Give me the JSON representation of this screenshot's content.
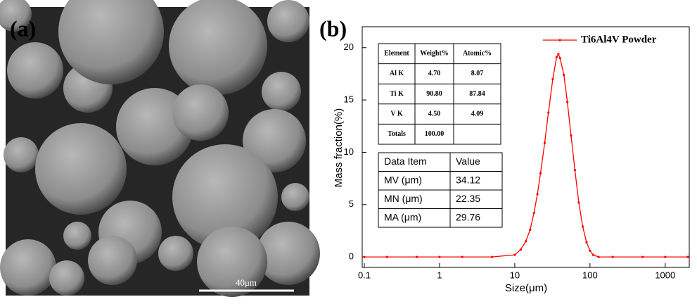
{
  "panel_a": {
    "label": "(a)",
    "scale_bar": "40μm"
  },
  "chart_data": {
    "type": "line",
    "panel_label": "(b)",
    "x_label": "Size(μm)",
    "y_label": "Mass fraction(%)",
    "x": [
      0.1,
      0.2,
      0.5,
      1,
      2,
      5,
      10,
      12,
      14,
      16,
      18,
      20,
      22,
      25,
      28,
      32,
      36,
      38,
      40,
      45,
      50,
      56,
      63,
      71,
      80,
      90,
      100,
      110,
      130,
      200,
      500,
      1000,
      2000
    ],
    "series": [
      {
        "name": "Ti6Al4V Powder",
        "color": "#ff0000",
        "values": [
          0,
          0,
          0,
          0,
          0,
          0,
          0.2,
          0.7,
          1.5,
          2.6,
          4.2,
          6.0,
          8.0,
          10.9,
          13.8,
          17.0,
          19.1,
          19.4,
          19.0,
          17.4,
          14.8,
          11.6,
          8.3,
          5.2,
          2.9,
          1.4,
          0.6,
          0.2,
          0,
          0,
          0,
          0,
          0
        ]
      }
    ],
    "xscale": "log",
    "xlim": [
      0.1,
      2000
    ],
    "xticks": [
      0.1,
      1,
      10,
      100,
      1000
    ],
    "ylim": [
      -1,
      22
    ],
    "yticks": [
      0,
      5,
      10,
      15,
      20
    ],
    "grid": false,
    "legend": "upper right"
  },
  "eds_table": {
    "header": [
      "Element",
      "Weight%",
      "Atomic%"
    ],
    "rows": [
      [
        "Al K",
        "4.70",
        "8.07"
      ],
      [
        "Ti K",
        "90.80",
        "87.84"
      ],
      [
        "V K",
        "4.50",
        "4.09"
      ],
      [
        "Totals",
        "100.00"
      ]
    ]
  },
  "summary_table": {
    "header": [
      "Data Item",
      "Value"
    ],
    "rows": [
      [
        "MV (μm)",
        "34.12"
      ],
      [
        "MN (μm)",
        "22.35"
      ],
      [
        "MA (μm)",
        "29.76"
      ]
    ]
  }
}
